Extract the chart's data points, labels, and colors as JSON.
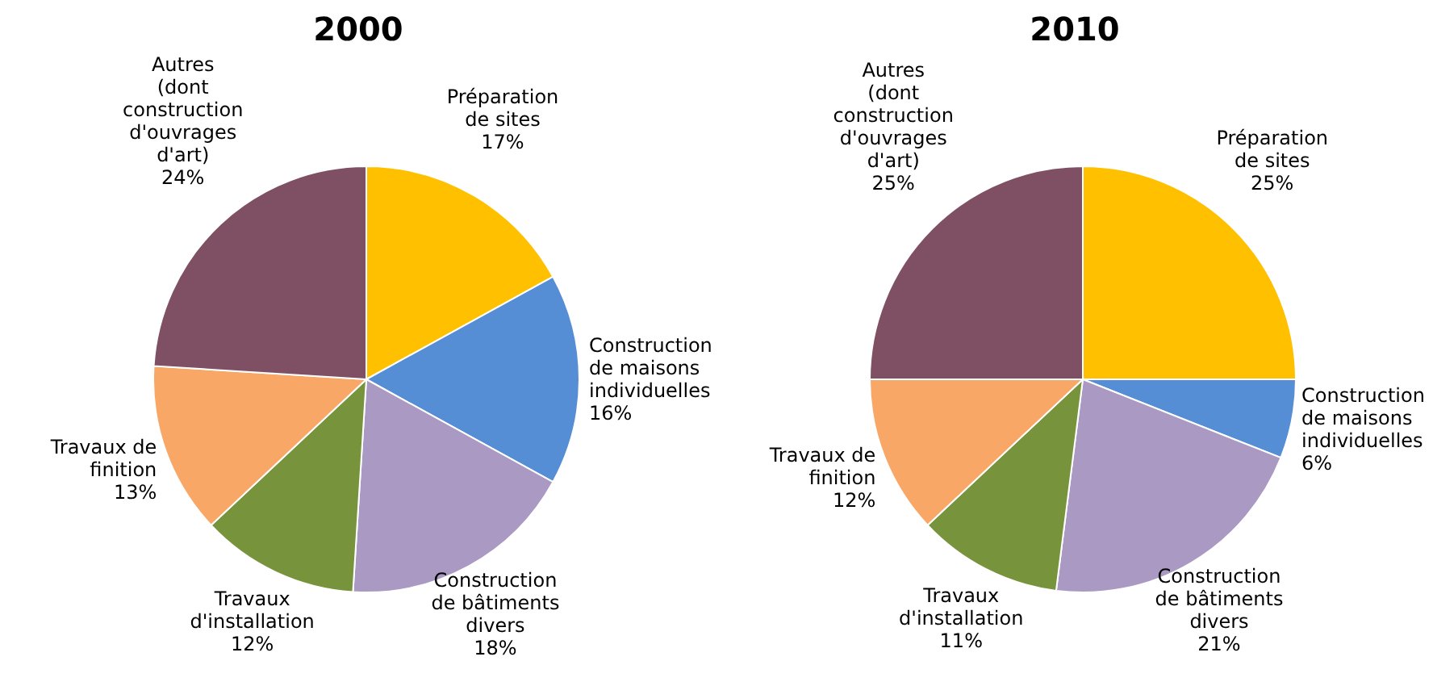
{
  "chart_data": [
    {
      "type": "pie",
      "title": "2000",
      "categories": [
        "Préparation\nde sites",
        "Construction\nde maisons\nindividuelles",
        "Construction\nde bâtiments\ndivers",
        "Travaux\nd'installation",
        "Travaux de\nfinition",
        "Autres\n(dont\nconstruction\nd'ouvrages\nd'art)"
      ],
      "values": [
        17,
        16,
        18,
        12,
        13,
        24
      ],
      "value_labels": [
        "17%",
        "16%",
        "18%",
        "12%",
        "13%",
        "24%"
      ],
      "colors": [
        "#ffc000",
        "#558ed5",
        "#aa99c2",
        "#77933c",
        "#f9a766",
        "#7f5063"
      ],
      "legend": false
    },
    {
      "type": "pie",
      "title": "2010",
      "categories": [
        "Préparation\nde sites",
        "Construction\nde maisons\nindividuelles",
        "Construction\nde bâtiments\ndivers",
        "Travaux\nd'installation",
        "Travaux de\nfinition",
        "Autres\n(dont\nconstruction\nd'ouvrages\nd'art)"
      ],
      "values": [
        25,
        6,
        21,
        11,
        12,
        25
      ],
      "value_labels": [
        "25%",
        "6%",
        "21%",
        "11%",
        "12%",
        "25%"
      ],
      "colors": [
        "#ffc000",
        "#558ed5",
        "#aa99c2",
        "#77933c",
        "#f9a766",
        "#7f5063"
      ],
      "legend": false
    }
  ]
}
